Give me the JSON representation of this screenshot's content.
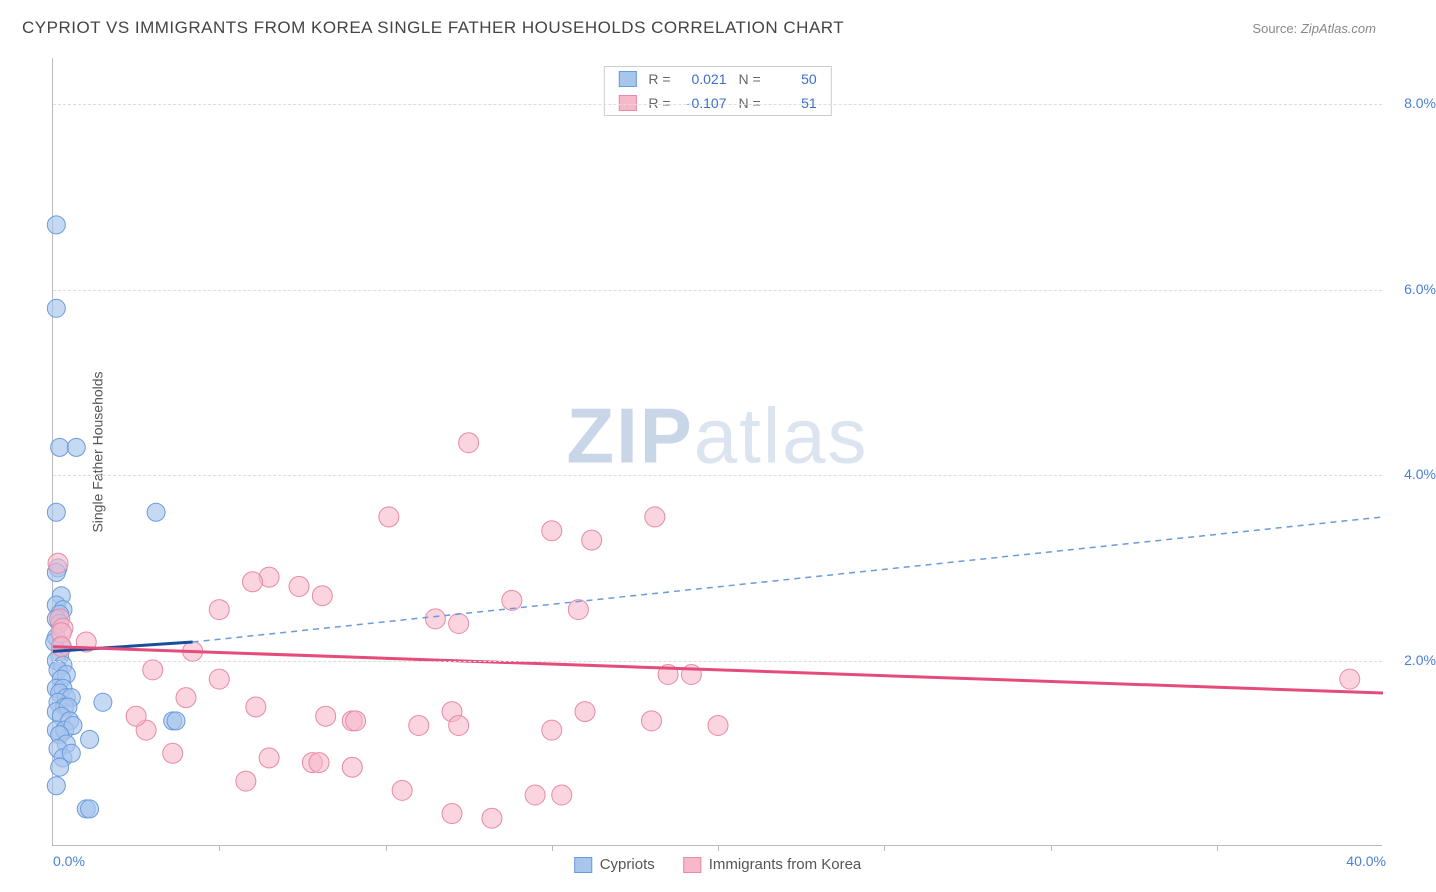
{
  "header": {
    "title": "CYPRIOT VS IMMIGRANTS FROM KOREA SINGLE FATHER HOUSEHOLDS CORRELATION CHART",
    "source_label": "Source:",
    "source_value": "ZipAtlas.com"
  },
  "watermark": {
    "bold": "ZIP",
    "rest": "atlas"
  },
  "chart": {
    "type": "scatter",
    "background_color": "#ffffff",
    "grid_color": "#dddddd",
    "axis_color": "#bbbbbb",
    "ylabel": "Single Father Households",
    "ylabel_fontsize": 14,
    "xlim": [
      0,
      40
    ],
    "ylim": [
      0,
      8.5
    ],
    "xticks_minor_step": 5,
    "yticks": [
      2,
      4,
      6,
      8
    ],
    "ytick_labels": [
      "2.0%",
      "4.0%",
      "6.0%",
      "8.0%"
    ],
    "xaxis_min_label": "0.0%",
    "xaxis_max_label": "40.0%",
    "tick_label_color": "#4a7fd6",
    "tick_label_fontsize": 14,
    "series": [
      {
        "name": "Cypriots",
        "marker_fill": "#a8c5ec",
        "marker_stroke": "#6a9bdc",
        "marker_opacity": 0.65,
        "marker_radius": 9,
        "R": "0.021",
        "N": "50",
        "trend": {
          "x1": 0,
          "y1": 2.1,
          "x2": 4.2,
          "y2": 2.2,
          "solid_color": "#1a4d9e",
          "solid_width": 3,
          "dash_x2": 40,
          "dash_y2": 3.55,
          "dash_color": "#6a9bdc",
          "dash_width": 1.5,
          "dash_pattern": "6,5"
        },
        "points": [
          [
            0.1,
            6.7
          ],
          [
            0.1,
            5.8
          ],
          [
            0.2,
            4.3
          ],
          [
            0.7,
            4.3
          ],
          [
            0.1,
            3.6
          ],
          [
            3.1,
            3.6
          ],
          [
            0.15,
            3.0
          ],
          [
            0.1,
            2.95
          ],
          [
            0.25,
            2.7
          ],
          [
            0.1,
            2.6
          ],
          [
            0.3,
            2.55
          ],
          [
            0.2,
            2.5
          ],
          [
            0.1,
            2.45
          ],
          [
            0.2,
            2.4
          ],
          [
            0.1,
            2.25
          ],
          [
            0.05,
            2.2
          ],
          [
            0.25,
            2.15
          ],
          [
            0.2,
            2.05
          ],
          [
            0.1,
            2.0
          ],
          [
            0.3,
            1.95
          ],
          [
            0.15,
            1.9
          ],
          [
            0.4,
            1.85
          ],
          [
            0.25,
            1.8
          ],
          [
            0.1,
            1.7
          ],
          [
            0.3,
            1.7
          ],
          [
            0.2,
            1.65
          ],
          [
            0.4,
            1.6
          ],
          [
            0.55,
            1.6
          ],
          [
            0.15,
            1.55
          ],
          [
            0.35,
            1.5
          ],
          [
            0.1,
            1.45
          ],
          [
            0.45,
            1.5
          ],
          [
            1.5,
            1.55
          ],
          [
            0.25,
            1.4
          ],
          [
            0.5,
            1.35
          ],
          [
            0.1,
            1.25
          ],
          [
            0.35,
            1.25
          ],
          [
            0.6,
            1.3
          ],
          [
            0.2,
            1.2
          ],
          [
            1.1,
            1.15
          ],
          [
            0.4,
            1.1
          ],
          [
            0.15,
            1.05
          ],
          [
            3.6,
            1.35
          ],
          [
            3.7,
            1.35
          ],
          [
            0.3,
            0.95
          ],
          [
            0.55,
            1.0
          ],
          [
            0.2,
            0.85
          ],
          [
            0.1,
            0.65
          ],
          [
            1.0,
            0.4
          ],
          [
            1.1,
            0.4
          ]
        ]
      },
      {
        "name": "Immigrants from Korea",
        "marker_fill": "#f7b8c9",
        "marker_stroke": "#e88aa4",
        "marker_opacity": 0.6,
        "marker_radius": 10,
        "R": "-0.107",
        "N": "51",
        "trend": {
          "x1": 0,
          "y1": 2.15,
          "x2": 40,
          "y2": 1.65,
          "solid_color": "#e64c7a",
          "solid_width": 3
        },
        "points": [
          [
            12.5,
            4.35
          ],
          [
            10.1,
            3.55
          ],
          [
            15.0,
            3.4
          ],
          [
            18.1,
            3.55
          ],
          [
            16.2,
            3.3
          ],
          [
            6.5,
            2.9
          ],
          [
            6.0,
            2.85
          ],
          [
            7.4,
            2.8
          ],
          [
            8.1,
            2.7
          ],
          [
            0.15,
            3.05
          ],
          [
            5.0,
            2.55
          ],
          [
            13.8,
            2.65
          ],
          [
            11.5,
            2.45
          ],
          [
            12.2,
            2.4
          ],
          [
            15.8,
            2.55
          ],
          [
            0.2,
            2.45
          ],
          [
            0.3,
            2.35
          ],
          [
            0.25,
            2.3
          ],
          [
            1.0,
            2.2
          ],
          [
            4.2,
            2.1
          ],
          [
            3.0,
            1.9
          ],
          [
            5.0,
            1.8
          ],
          [
            18.5,
            1.85
          ],
          [
            19.2,
            1.85
          ],
          [
            39.0,
            1.8
          ],
          [
            4.0,
            1.6
          ],
          [
            6.1,
            1.5
          ],
          [
            8.2,
            1.4
          ],
          [
            9.0,
            1.35
          ],
          [
            9.1,
            1.35
          ],
          [
            11.0,
            1.3
          ],
          [
            12.0,
            1.45
          ],
          [
            12.2,
            1.3
          ],
          [
            15.0,
            1.25
          ],
          [
            16.0,
            1.45
          ],
          [
            18.0,
            1.35
          ],
          [
            20.0,
            1.3
          ],
          [
            2.8,
            1.25
          ],
          [
            6.5,
            0.95
          ],
          [
            7.8,
            0.9
          ],
          [
            8.0,
            0.9
          ],
          [
            9.0,
            0.85
          ],
          [
            10.5,
            0.6
          ],
          [
            14.5,
            0.55
          ],
          [
            15.3,
            0.55
          ],
          [
            12.0,
            0.35
          ],
          [
            13.2,
            0.3
          ],
          [
            5.8,
            0.7
          ],
          [
            3.6,
            1.0
          ],
          [
            2.5,
            1.4
          ],
          [
            0.25,
            2.15
          ]
        ]
      }
    ],
    "legend_stats": {
      "R_label": "R =",
      "N_label": "N ="
    },
    "legend_bottom": {
      "series1": "Cypriots",
      "series2": "Immigrants from Korea"
    }
  }
}
